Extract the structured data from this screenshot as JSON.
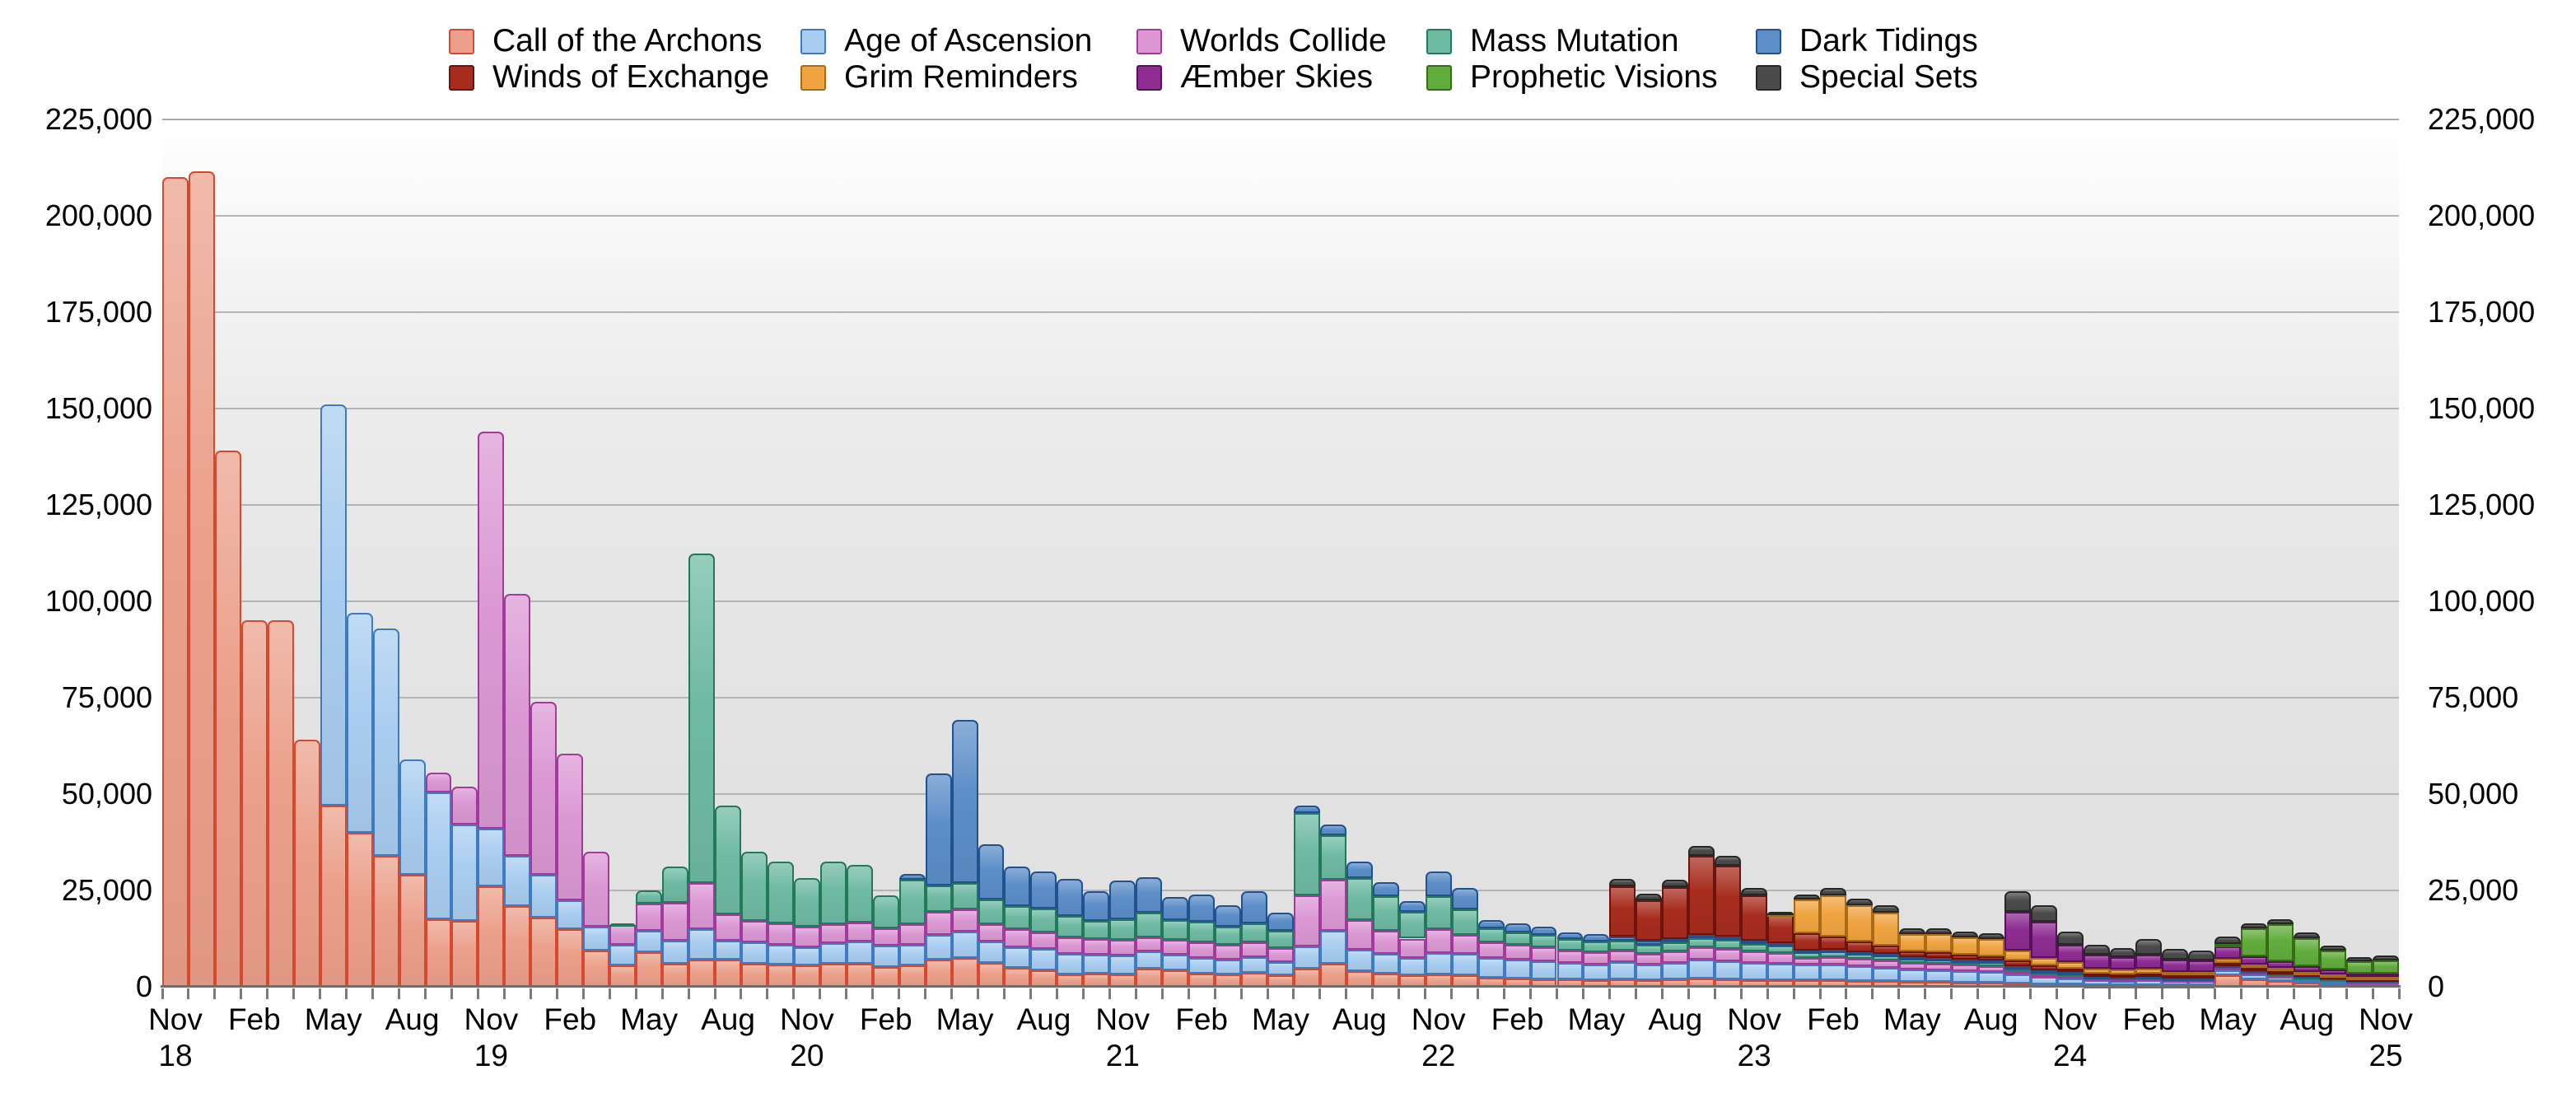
{
  "chart_data": {
    "type": "bar",
    "stacked": true,
    "title": "",
    "xlabel": "",
    "ylabel": "",
    "ylim": [
      0,
      225000
    ],
    "ytick_step": 25000,
    "grid": true,
    "legend_position": "top",
    "y_tick_labels": [
      "0",
      "25,000",
      "50,000",
      "75,000",
      "100,000",
      "125,000",
      "150,000",
      "175,000",
      "200,000",
      "225,000"
    ],
    "categories": [
      "Nov 18",
      "Dec 18",
      "Jan 19",
      "Feb 19",
      "Mar 19",
      "Apr 19",
      "May 19",
      "Jun 19",
      "Jul 19",
      "Aug 19",
      "Sep 19",
      "Oct 19",
      "Nov 19",
      "Dec 19",
      "Jan 20",
      "Feb 20",
      "Mar 20",
      "Apr 20",
      "May 20",
      "Jun 20",
      "Jul 20",
      "Aug 20",
      "Sep 20",
      "Oct 20",
      "Nov 20",
      "Dec 20",
      "Jan 21",
      "Feb 21",
      "Mar 21",
      "Apr 21",
      "May 21",
      "Jun 21",
      "Jul 21",
      "Aug 21",
      "Sep 21",
      "Oct 21",
      "Nov 21",
      "Dec 21",
      "Jan 22",
      "Feb 22",
      "Mar 22",
      "Apr 22",
      "May 22",
      "Jun 22",
      "Jul 22",
      "Aug 22",
      "Sep 22",
      "Oct 22",
      "Nov 22",
      "Dec 22",
      "Jan 23",
      "Feb 23",
      "Mar 23",
      "Apr 23",
      "May 23",
      "Jun 23",
      "Jul 23",
      "Aug 23",
      "Sep 23",
      "Oct 23",
      "Nov 23",
      "Dec 23",
      "Jan 24",
      "Feb 24",
      "Mar 24",
      "Apr 24",
      "May 24",
      "Jun 24",
      "Jul 24",
      "Aug 24",
      "Sep 24",
      "Oct 24",
      "Nov 24",
      "Dec 24",
      "Jan 25",
      "Feb 25",
      "Mar 25",
      "Apr 25",
      "May 25",
      "Jun 25",
      "Jul 25",
      "Aug 25",
      "Sep 25",
      "Oct 25",
      "Nov 25"
    ],
    "x_tick_labels": [
      {
        "i": 0,
        "month": "Nov",
        "year": "18"
      },
      {
        "i": 3,
        "month": "Feb"
      },
      {
        "i": 6,
        "month": "May"
      },
      {
        "i": 9,
        "month": "Aug"
      },
      {
        "i": 12,
        "month": "Nov",
        "year": "19"
      },
      {
        "i": 15,
        "month": "Feb"
      },
      {
        "i": 18,
        "month": "May"
      },
      {
        "i": 21,
        "month": "Aug"
      },
      {
        "i": 24,
        "month": "Nov",
        "year": "20"
      },
      {
        "i": 27,
        "month": "Feb"
      },
      {
        "i": 30,
        "month": "May"
      },
      {
        "i": 33,
        "month": "Aug"
      },
      {
        "i": 36,
        "month": "Nov",
        "year": "21"
      },
      {
        "i": 39,
        "month": "Feb"
      },
      {
        "i": 42,
        "month": "May"
      },
      {
        "i": 45,
        "month": "Aug"
      },
      {
        "i": 48,
        "month": "Nov",
        "year": "22"
      },
      {
        "i": 51,
        "month": "Feb"
      },
      {
        "i": 54,
        "month": "May"
      },
      {
        "i": 57,
        "month": "Aug"
      },
      {
        "i": 60,
        "month": "Nov",
        "year": "23"
      },
      {
        "i": 63,
        "month": "Feb"
      },
      {
        "i": 66,
        "month": "May"
      },
      {
        "i": 69,
        "month": "Aug"
      },
      {
        "i": 72,
        "month": "Nov",
        "year": "24"
      },
      {
        "i": 75,
        "month": "Feb"
      },
      {
        "i": 78,
        "month": "May"
      },
      {
        "i": 81,
        "month": "Aug"
      },
      {
        "i": 84,
        "month": "Nov",
        "year": "25"
      }
    ],
    "series": [
      {
        "name": "Call of the Archons",
        "fill": "#EBA08B",
        "stroke": "#D6492F",
        "values": [
          210000,
          211500,
          139000,
          95000,
          95000,
          64000,
          47000,
          40000,
          34000,
          29000,
          17500,
          17000,
          26000,
          21000,
          18000,
          15000,
          9500,
          5500,
          9000,
          6000,
          7000,
          7000,
          6000,
          5700,
          5500,
          6000,
          5900,
          5200,
          5500,
          7000,
          7500,
          6300,
          5000,
          4300,
          3200,
          3400,
          3200,
          4600,
          4200,
          3500,
          3300,
          3600,
          3000,
          4700,
          6000,
          4000,
          3500,
          3000,
          3200,
          3000,
          2300,
          2200,
          2000,
          1900,
          1800,
          2000,
          1800,
          2000,
          2200,
          2000,
          1800,
          1700,
          1800,
          1700,
          1500,
          1400,
          1200,
          1200,
          1100,
          1000,
          800,
          700,
          600,
          500,
          500,
          500,
          400,
          400,
          3000,
          2000,
          1400,
          1000,
          800,
          600,
          600
        ]
      },
      {
        "name": "Age of Ascension",
        "fill": "#A9CDF0",
        "stroke": "#3F7BC1",
        "values": [
          0,
          0,
          0,
          0,
          0,
          0,
          104000,
          57000,
          59000,
          30000,
          33000,
          25000,
          15000,
          13000,
          11000,
          7500,
          6000,
          5500,
          5500,
          6000,
          8000,
          5000,
          5500,
          5300,
          4800,
          5300,
          5800,
          5400,
          5500,
          6500,
          6900,
          5500,
          5300,
          5600,
          5300,
          5000,
          5000,
          4500,
          4100,
          4000,
          3700,
          4000,
          3500,
          5800,
          8600,
          5700,
          5000,
          4500,
          5500,
          5500,
          5200,
          4800,
          4600,
          4200,
          4000,
          4500,
          4000,
          4200,
          4800,
          4600,
          4400,
          4200,
          3900,
          4000,
          3800,
          3600,
          3200,
          3100,
          3000,
          2900,
          2300,
          1800,
          1600,
          1200,
          1100,
          1200,
          1000,
          1000,
          1300,
          1200,
          1100,
          900,
          800,
          600,
          600
        ]
      },
      {
        "name": "Worlds Collide",
        "fill": "#DB98D4",
        "stroke": "#A23A9B",
        "values": [
          0,
          0,
          0,
          0,
          0,
          0,
          0,
          0,
          0,
          0,
          5000,
          10000,
          103000,
          68000,
          45000,
          38000,
          19500,
          5000,
          7000,
          9800,
          12000,
          6800,
          5500,
          5500,
          5300,
          5000,
          5000,
          4600,
          5300,
          6000,
          5600,
          4500,
          4600,
          4300,
          4300,
          4000,
          4000,
          3800,
          3900,
          4000,
          4000,
          4000,
          3500,
          13200,
          13200,
          7700,
          6000,
          5000,
          6300,
          5000,
          4000,
          3800,
          3600,
          3300,
          3200,
          3000,
          2800,
          3000,
          3200,
          3200,
          3000,
          2800,
          1800,
          2000,
          1900,
          1800,
          1700,
          1700,
          1600,
          1500,
          1000,
          800,
          800,
          600,
          600,
          600,
          500,
          500,
          800,
          700,
          700,
          600,
          500,
          400,
          400
        ]
      },
      {
        "name": "Mass Mutation",
        "fill": "#6FBAA3",
        "stroke": "#23795B",
        "values": [
          0,
          0,
          0,
          0,
          0,
          0,
          0,
          0,
          0,
          0,
          0,
          0,
          0,
          0,
          0,
          0,
          0,
          500,
          3500,
          9500,
          85500,
          28200,
          18000,
          16000,
          12600,
          16100,
          14900,
          8500,
          11400,
          6700,
          6900,
          6400,
          6000,
          6000,
          5600,
          4600,
          5300,
          6300,
          5200,
          5300,
          4500,
          4900,
          4500,
          21300,
          11500,
          10900,
          9000,
          7000,
          8500,
          6500,
          3700,
          3400,
          3200,
          2900,
          2800,
          2500,
          2400,
          2300,
          2400,
          2300,
          2000,
          1900,
          1400,
          1500,
          1400,
          1300,
          1200,
          1200,
          1100,
          1100,
          1000,
          700,
          600,
          400,
          400,
          400,
          400,
          400,
          500,
          400,
          400,
          350,
          300,
          250,
          250
        ]
      },
      {
        "name": "Dark Tidings",
        "fill": "#5D8EC8",
        "stroke": "#21518F",
        "values": [
          0,
          0,
          0,
          0,
          0,
          0,
          0,
          0,
          0,
          0,
          0,
          0,
          0,
          0,
          0,
          0,
          0,
          0,
          0,
          0,
          0,
          0,
          0,
          0,
          0,
          0,
          0,
          0,
          1600,
          29200,
          42400,
          14200,
          10300,
          9800,
          9600,
          7800,
          10000,
          9300,
          5900,
          7200,
          5700,
          8200,
          4700,
          2000,
          2700,
          4100,
          3700,
          2800,
          6500,
          5600,
          2200,
          2200,
          2200,
          1900,
          1800,
          1000,
          900,
          800,
          900,
          900,
          800,
          800,
          400,
          400,
          400,
          400,
          300,
          300,
          300,
          300,
          300,
          200,
          200,
          100,
          100,
          100,
          100,
          100,
          200,
          200,
          150,
          150,
          100,
          100,
          100
        ]
      },
      {
        "name": "Winds of Exchange",
        "fill": "#A72C1E",
        "stroke": "#6E130B",
        "values": [
          0,
          0,
          0,
          0,
          0,
          0,
          0,
          0,
          0,
          0,
          0,
          0,
          0,
          0,
          0,
          0,
          0,
          0,
          0,
          0,
          0,
          0,
          0,
          0,
          0,
          0,
          0,
          0,
          0,
          0,
          0,
          0,
          0,
          0,
          0,
          0,
          0,
          0,
          0,
          0,
          0,
          0,
          0,
          0,
          0,
          0,
          0,
          0,
          0,
          0,
          0,
          0,
          0,
          0,
          0,
          13100,
          10500,
          13500,
          20500,
          18500,
          11800,
          7100,
          4600,
          3500,
          2700,
          2200,
          1600,
          1400,
          1200,
          1100,
          1500,
          1250,
          1000,
          700,
          600,
          600,
          500,
          500,
          500,
          400,
          400,
          350,
          300,
          250,
          250
        ]
      },
      {
        "name": "Grim Reminders",
        "fill": "#F0A441",
        "stroke": "#AA6B14",
        "values": [
          0,
          0,
          0,
          0,
          0,
          0,
          0,
          0,
          0,
          0,
          0,
          0,
          0,
          0,
          0,
          0,
          0,
          0,
          0,
          0,
          0,
          0,
          0,
          0,
          0,
          0,
          0,
          0,
          0,
          0,
          0,
          0,
          0,
          0,
          0,
          0,
          0,
          0,
          0,
          0,
          0,
          0,
          0,
          0,
          0,
          0,
          0,
          0,
          0,
          0,
          0,
          0,
          0,
          0,
          0,
          0,
          0,
          0,
          0,
          0,
          0,
          600,
          8700,
          10600,
          9500,
          8600,
          4400,
          4700,
          4600,
          4400,
          2400,
          2100,
          1700,
          1200,
          1100,
          1200,
          900,
          900,
          900,
          800,
          700,
          600,
          500,
          400,
          400
        ]
      },
      {
        "name": "Æmber Skies",
        "fill": "#8E2C92",
        "stroke": "#571059",
        "values": [
          0,
          0,
          0,
          0,
          0,
          0,
          0,
          0,
          0,
          0,
          0,
          0,
          0,
          0,
          0,
          0,
          0,
          0,
          0,
          0,
          0,
          0,
          0,
          0,
          0,
          0,
          0,
          0,
          0,
          0,
          0,
          0,
          0,
          0,
          0,
          0,
          0,
          0,
          0,
          0,
          0,
          0,
          0,
          0,
          0,
          0,
          0,
          0,
          0,
          0,
          0,
          0,
          0,
          0,
          0,
          0,
          0,
          0,
          0,
          0,
          0,
          0,
          0,
          0,
          0,
          0,
          0,
          0,
          0,
          0,
          10200,
          9400,
          4500,
          3600,
          3300,
          3800,
          3200,
          3000,
          3200,
          2300,
          1800,
          1400,
          1100,
          900,
          900
        ]
      },
      {
        "name": "Prophetic Visions",
        "fill": "#62AC3D",
        "stroke": "#356E16",
        "values": [
          0,
          0,
          0,
          0,
          0,
          0,
          0,
          0,
          0,
          0,
          0,
          0,
          0,
          0,
          0,
          0,
          0,
          0,
          0,
          0,
          0,
          0,
          0,
          0,
          0,
          0,
          0,
          0,
          0,
          0,
          0,
          0,
          0,
          0,
          0,
          0,
          0,
          0,
          0,
          0,
          0,
          0,
          0,
          0,
          0,
          0,
          0,
          0,
          0,
          0,
          0,
          0,
          0,
          0,
          0,
          0,
          0,
          0,
          0,
          0,
          0,
          0,
          0,
          0,
          0,
          0,
          0,
          0,
          0,
          0,
          0,
          0,
          0,
          0,
          0,
          0,
          0,
          0,
          800,
          7200,
          9500,
          7200,
          5000,
          3200,
          3300
        ]
      },
      {
        "name": "Special Sets",
        "fill": "#4B4B4B",
        "stroke": "#272727",
        "values": [
          0,
          0,
          0,
          0,
          0,
          0,
          0,
          0,
          0,
          0,
          0,
          0,
          0,
          0,
          0,
          0,
          0,
          0,
          0,
          0,
          0,
          0,
          0,
          0,
          0,
          0,
          0,
          0,
          0,
          0,
          0,
          0,
          0,
          0,
          0,
          0,
          0,
          0,
          0,
          0,
          0,
          0,
          0,
          0,
          0,
          0,
          0,
          0,
          0,
          0,
          0,
          0,
          0,
          0,
          0,
          1900,
          1800,
          1900,
          2500,
          2500,
          1900,
          400,
          1400,
          2000,
          1700,
          1800,
          1500,
          1500,
          1500,
          1500,
          5200,
          4200,
          3300,
          2500,
          2300,
          4000,
          2900,
          2500,
          1900,
          1300,
          1450,
          1450,
          1200,
          1000,
          1400
        ]
      }
    ]
  },
  "legend": {
    "rows": [
      [
        0,
        1,
        2,
        3,
        4
      ],
      [
        5,
        6,
        7,
        8,
        9
      ]
    ],
    "col_offsets": [
      0,
      427,
      835,
      1187,
      1587
    ]
  }
}
